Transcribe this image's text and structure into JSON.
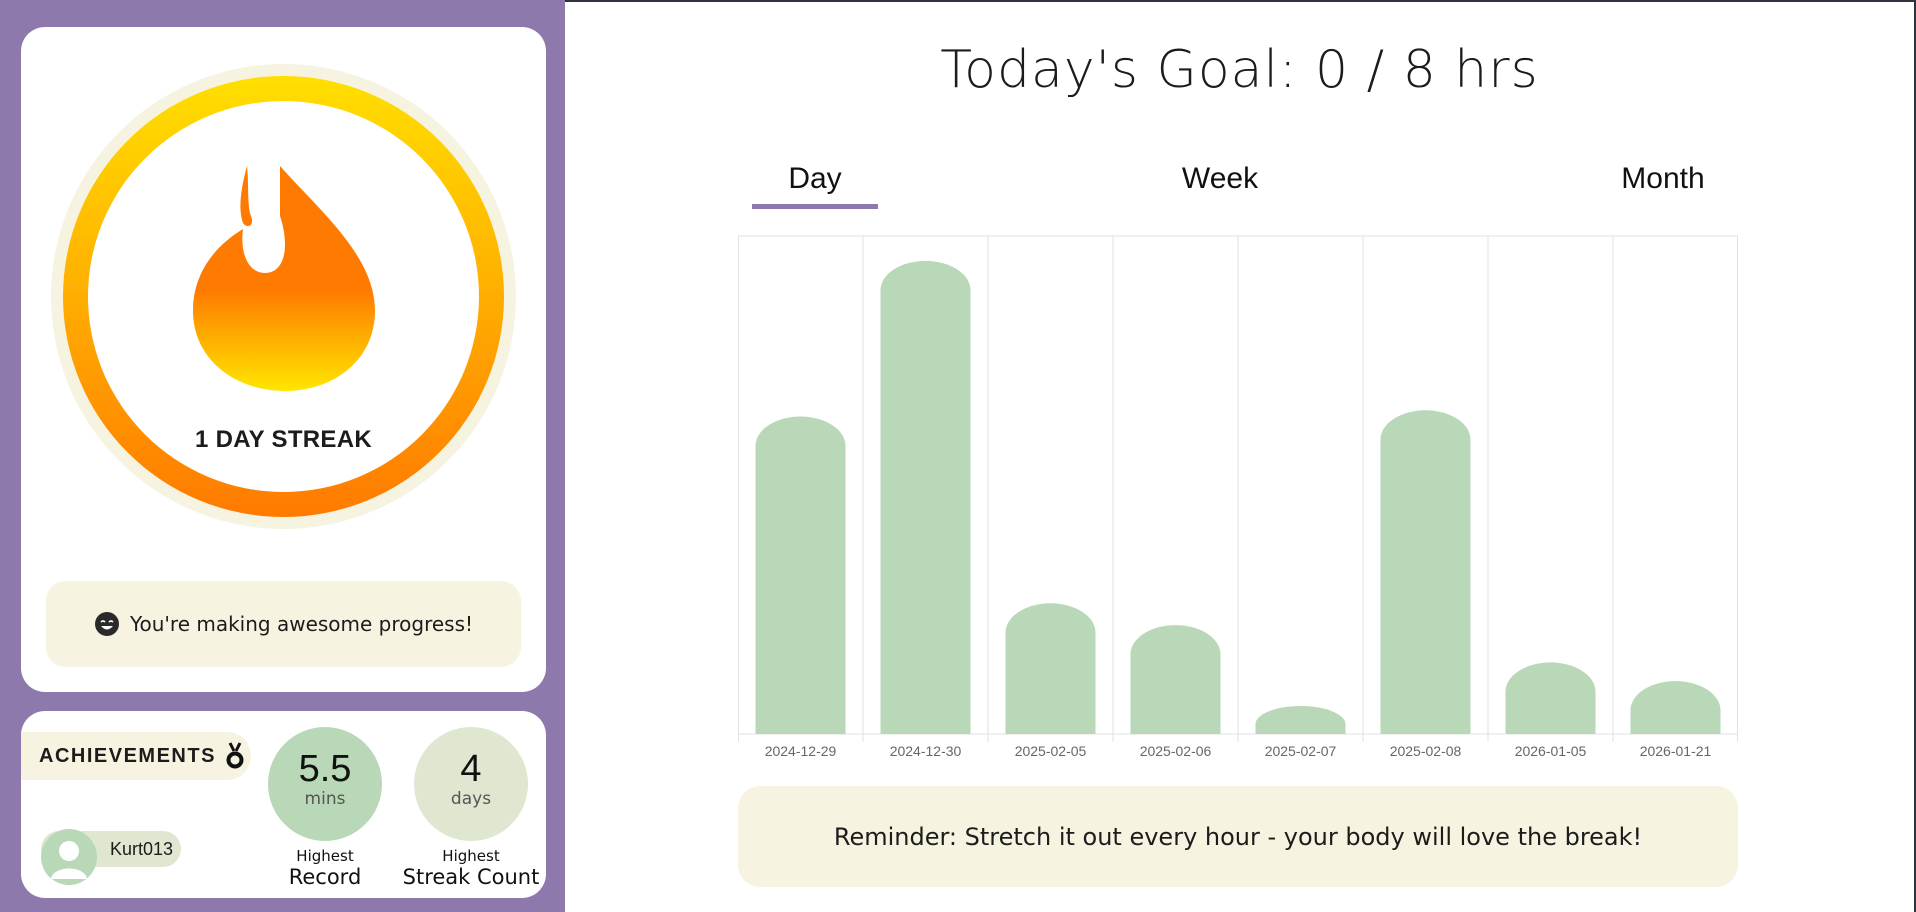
{
  "sidebar": {
    "streak": {
      "label": "1 DAY STREAK",
      "days": 1
    },
    "progress_message": "You're making awesome progress!",
    "achievements": {
      "title": "ACHIEVEMENTS",
      "username": "Kurt013",
      "highest_record": {
        "value": "5.5",
        "unit": "mins",
        "caption_small": "Highest",
        "caption_big": "Record"
      },
      "highest_streak": {
        "value": "4",
        "unit": "days",
        "caption_small": "Highest",
        "caption_big": "Streak Count"
      }
    }
  },
  "main": {
    "goal_title": "Today's Goal: 0 / 8 hrs",
    "tabs": [
      {
        "label": "Day",
        "active": true
      },
      {
        "label": "Week",
        "active": false
      },
      {
        "label": "Month",
        "active": false
      }
    ],
    "reminder": "Reminder: Stretch it out every hour - your body will love the break!"
  },
  "colors": {
    "sidebar_bg": "#8e79ad",
    "accent": "#8e79ad",
    "bar": "#b9d8b8",
    "cream": "#f7f3e1",
    "streak_ring_top": "#ffdf00",
    "streak_ring_bottom": "#ff7a00"
  },
  "chart_data": {
    "type": "bar",
    "categories": [
      "2024-12-29",
      "2024-12-30",
      "2025-02-05",
      "2025-02-06",
      "2025-02-07",
      "2025-02-08",
      "2026-01-05",
      "2026-01-21"
    ],
    "values": [
      5.1,
      7.6,
      2.1,
      1.75,
      0.45,
      5.2,
      1.15,
      0.85
    ],
    "ylim": [
      0,
      8
    ],
    "grid": true,
    "title": "",
    "xlabel": "",
    "ylabel": ""
  }
}
